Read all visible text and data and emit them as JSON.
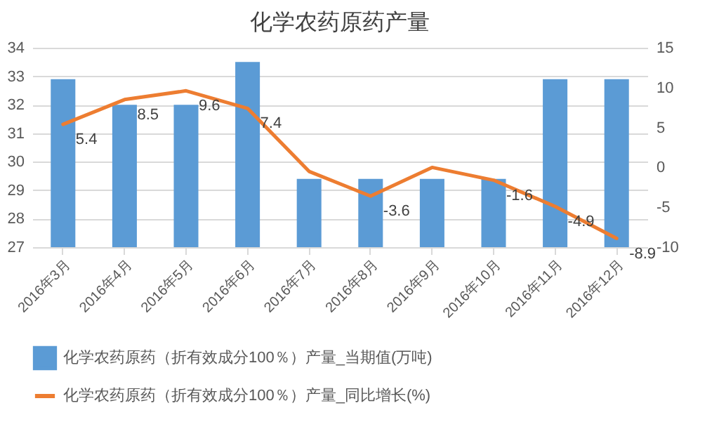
{
  "chart_data": {
    "type": "bar",
    "title": "化学农药原药产量",
    "categories": [
      "2016年3月",
      "2016年4月",
      "2016年5月",
      "2016年6月",
      "2016年7月",
      "2016年8月",
      "2016年9月",
      "2016年10月",
      "2016年11月",
      "2016年12月"
    ],
    "series": [
      {
        "name": "化学农药原药（折有效成分100％）产量_当期值(万吨)",
        "color": "#5b9bd5",
        "values": [
          32.9,
          32.0,
          32.0,
          33.5,
          29.4,
          29.4,
          29.4,
          29.4,
          32.9,
          32.9
        ]
      },
      {
        "name": "化学农药原药（折有效成分100％）产量_同比增长(%)",
        "type": "line",
        "axis": "y2",
        "color": "#ed7d31",
        "values": [
          5.4,
          8.5,
          9.6,
          7.4,
          -0.5,
          -3.6,
          0,
          -1.6,
          -4.9,
          -8.9
        ],
        "value_labels": [
          "5.4",
          "8.5",
          "9.6",
          "7.4",
          null,
          "-3.6",
          null,
          "-1.6",
          "-4.9",
          "-8.9"
        ]
      }
    ],
    "ylim": [
      27,
      34
    ],
    "yticks": [
      27,
      28,
      29,
      30,
      31,
      32,
      33,
      34
    ],
    "y2lim": [
      -10,
      15
    ],
    "y2ticks": [
      -10,
      -5,
      0,
      5,
      10,
      15
    ],
    "grid": "y",
    "legend": "bottom"
  }
}
